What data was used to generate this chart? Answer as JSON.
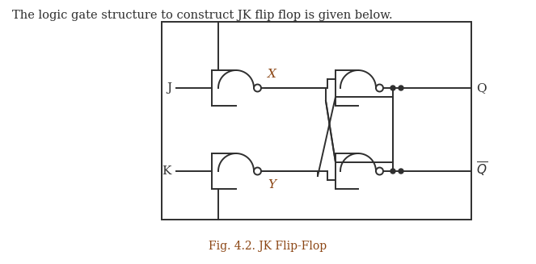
{
  "title_text": "The logic gate structure to construct JK flip flop is given below.",
  "caption": "Fig. 4.2. JK Flip-Flop",
  "title_color": "#2F2F2F",
  "caption_color": "#8B4513",
  "gate_color": "#2F2F2F",
  "line_color": "#2F2F2F",
  "bg_color": "#ffffff",
  "label_J": "J",
  "label_K": "K",
  "label_X": "X",
  "label_Y": "Y",
  "label_Q": "Q",
  "label_Qbar": "Q",
  "title_fontsize": 10.5,
  "caption_fontsize": 10,
  "label_fontsize": 11
}
